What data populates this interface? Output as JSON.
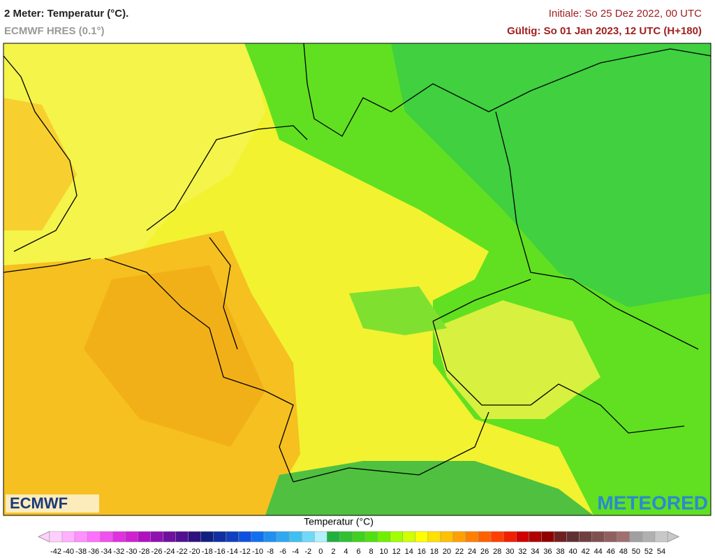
{
  "header": {
    "title": "2 Meter: Temperatur (°C).",
    "subtitle": "ECMWF HRES (0.1°)",
    "initial": "Initiale: So 25 Dez 2022, 00 UTC",
    "valid": "Gültig: So 01 Jan 2023, 12 UTC (H+180)"
  },
  "logos": {
    "left": "ECMWF",
    "right": "METEORED"
  },
  "colorbar": {
    "label": "Temperatur (°C)",
    "ticks": [
      -42,
      -40,
      -38,
      -36,
      -34,
      -32,
      -30,
      -28,
      -26,
      -24,
      -22,
      -20,
      -18,
      -16,
      -14,
      -12,
      -10,
      -8,
      -6,
      -4,
      -2,
      0,
      2,
      4,
      6,
      8,
      10,
      12,
      14,
      16,
      18,
      20,
      22,
      24,
      26,
      28,
      30,
      32,
      34,
      36,
      38,
      40,
      42,
      44,
      46,
      48,
      50,
      52,
      54
    ],
    "colors": [
      "#ffd0ff",
      "#ffb0ff",
      "#ff90ff",
      "#ff70ff",
      "#f050f0",
      "#e030e0",
      "#d020d0",
      "#b010c0",
      "#9010b0",
      "#7010a0",
      "#501090",
      "#301080",
      "#102080",
      "#1030a0",
      "#1040c0",
      "#1050e0",
      "#1070f0",
      "#2090f0",
      "#30a8f0",
      "#40c0f0",
      "#70d8f8",
      "#b0f0ff",
      "#20b040",
      "#30c030",
      "#40d020",
      "#50e010",
      "#70f000",
      "#a0ff00",
      "#d0ff00",
      "#ffff00",
      "#ffe000",
      "#ffc000",
      "#ffa000",
      "#ff8000",
      "#ff6000",
      "#ff4000",
      "#f02000",
      "#d00000",
      "#b00000",
      "#900000",
      "#702020",
      "#603030",
      "#704040",
      "#805050",
      "#906060",
      "#a07070",
      "#a0a0a0",
      "#b0b0b0",
      "#c8c8c8"
    ]
  }
}
